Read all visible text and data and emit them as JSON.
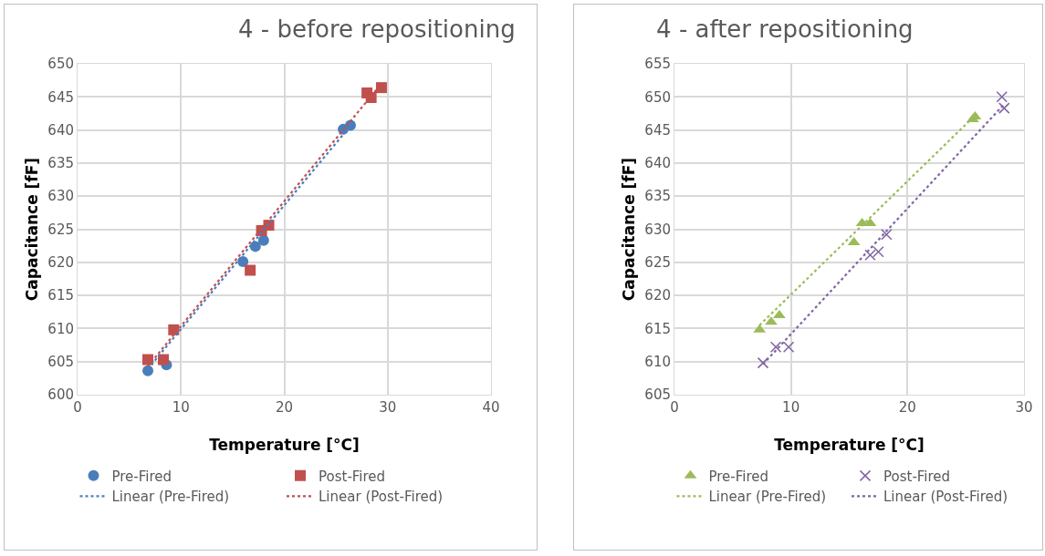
{
  "chart_data": [
    {
      "type": "scatter",
      "title": "4 - before repositioning",
      "xlabel": "Temperature [°C]",
      "ylabel": "Capacitance [fF]",
      "xlim": [
        0,
        40
      ],
      "xticks": [
        0,
        10,
        20,
        30,
        40
      ],
      "ylim": [
        600,
        650
      ],
      "yticks": [
        600,
        605,
        610,
        615,
        620,
        625,
        630,
        635,
        640,
        645,
        650
      ],
      "grid": true,
      "legend": "bottom",
      "series": [
        {
          "name": "Pre-Fired",
          "marker": "circle",
          "color": "#4a7ebb",
          "x": [
            6.8,
            8.6,
            16.0,
            17.2,
            18.0,
            25.7,
            26.4
          ],
          "values": [
            603.6,
            604.5,
            620.1,
            622.4,
            623.3,
            640.1,
            640.7
          ]
        },
        {
          "name": "Post-Fired",
          "marker": "square",
          "color": "#c0504d",
          "x": [
            6.8,
            8.3,
            9.3,
            16.7,
            17.8,
            18.5,
            28.0,
            28.4,
            29.4
          ],
          "values": [
            605.3,
            605.3,
            609.8,
            618.8,
            624.8,
            625.6,
            645.6,
            644.9,
            646.4
          ]
        },
        {
          "name": "Linear (Pre-Fired)",
          "type": "line",
          "line_style": "dotted",
          "color": "#4a7ebb",
          "x": [
            6.8,
            26.6
          ],
          "values": [
            603.9,
            641.0
          ]
        },
        {
          "name": "Linear (Post-Fired)",
          "type": "line",
          "line_style": "dotted",
          "color": "#c0504d",
          "x": [
            6.8,
            29.4
          ],
          "values": [
            604.3,
            647.0
          ]
        }
      ]
    },
    {
      "type": "scatter",
      "title": "4 - after repositioning",
      "xlabel": "Temperature [°C]",
      "ylabel": "Capacitance [fF]",
      "xlim": [
        0,
        30
      ],
      "xticks": [
        0,
        10,
        20,
        30
      ],
      "ylim": [
        605,
        655
      ],
      "yticks": [
        605,
        610,
        615,
        620,
        625,
        630,
        635,
        640,
        645,
        650,
        655
      ],
      "grid": true,
      "legend": "bottom",
      "series": [
        {
          "name": "Pre-Fired",
          "marker": "triangle",
          "color": "#9bbb59",
          "x": [
            7.3,
            8.3,
            9.0,
            15.4,
            16.1,
            16.8,
            25.6,
            25.8
          ],
          "values": [
            614.8,
            616.0,
            617.0,
            628.0,
            630.9,
            630.9,
            646.6,
            647.0
          ]
        },
        {
          "name": "Post-Fired",
          "marker": "cross",
          "color": "#8064a2",
          "x": [
            7.6,
            8.7,
            9.8,
            16.8,
            17.5,
            18.2,
            28.1,
            28.3
          ],
          "values": [
            609.8,
            612.2,
            612.2,
            626.1,
            626.6,
            629.2,
            650.0,
            648.3
          ]
        },
        {
          "name": "Linear (Pre-Fired)",
          "type": "line",
          "line_style": "dotted",
          "color": "#9bbb59",
          "x": [
            7.3,
            25.8
          ],
          "values": [
            615.5,
            647.2
          ]
        },
        {
          "name": "Linear (Post-Fired)",
          "type": "line",
          "line_style": "dotted",
          "color": "#8064a2",
          "x": [
            7.6,
            28.3
          ],
          "values": [
            609.6,
            648.9
          ]
        }
      ]
    }
  ]
}
